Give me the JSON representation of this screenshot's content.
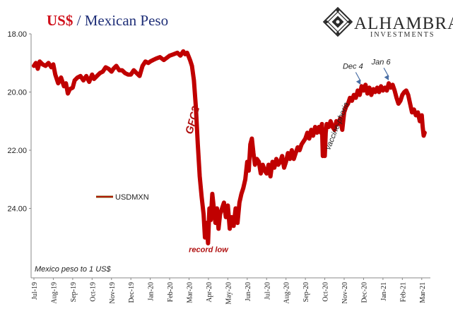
{
  "brand": {
    "name": "ALHAMBRA",
    "tagline": "INVESTMENTS"
  },
  "colors": {
    "series": "#c00000",
    "title_red": "#d0101b",
    "title_blue": "#1f2f78",
    "arrow": "#4a6fa5"
  },
  "chart_data": {
    "type": "line",
    "title_part1": "US$",
    "title_sep": " / ",
    "title_part2": "Mexican Peso",
    "subtitle": "Mexico peso to 1 US$",
    "y_inverted": true,
    "ylim": [
      18.0,
      26.0
    ],
    "yticks": [
      {
        "value": 18.0,
        "label": "18.00"
      },
      {
        "value": 20.0,
        "label": "20.00"
      },
      {
        "value": 22.0,
        "label": "22.00"
      },
      {
        "value": 24.0,
        "label": "24.00"
      }
    ],
    "xticks": [
      "Jul-19",
      "Aug-19",
      "Sep-19",
      "Oct-19",
      "Nov-19",
      "Dec-19",
      "Jan-20",
      "Feb-20",
      "Mar-20",
      "Apr-20",
      "May-20",
      "Jun-20",
      "Jul-20",
      "Aug-20",
      "Sep-20",
      "Oct-20",
      "Nov-20",
      "Dec-20",
      "Jan-21",
      "Feb-21",
      "Mar-21"
    ],
    "x_range": [
      0,
      20.3
    ],
    "legend": {
      "label": "USDMXN",
      "position": "center-left"
    },
    "series": [
      {
        "name": "USDMXN",
        "points": [
          [
            0.0,
            19.1
          ],
          [
            0.1,
            19.0
          ],
          [
            0.2,
            19.2
          ],
          [
            0.3,
            18.95
          ],
          [
            0.45,
            19.05
          ],
          [
            0.6,
            19.1
          ],
          [
            0.75,
            19.0
          ],
          [
            0.9,
            19.15
          ],
          [
            1.0,
            19.05
          ],
          [
            1.1,
            19.4
          ],
          [
            1.25,
            19.7
          ],
          [
            1.4,
            19.5
          ],
          [
            1.55,
            19.8
          ],
          [
            1.65,
            19.7
          ],
          [
            1.75,
            20.05
          ],
          [
            1.85,
            19.9
          ],
          [
            2.0,
            19.85
          ],
          [
            2.1,
            19.6
          ],
          [
            2.25,
            19.5
          ],
          [
            2.4,
            19.45
          ],
          [
            2.55,
            19.6
          ],
          [
            2.7,
            19.45
          ],
          [
            2.85,
            19.65
          ],
          [
            3.0,
            19.4
          ],
          [
            3.1,
            19.55
          ],
          [
            3.25,
            19.45
          ],
          [
            3.4,
            19.35
          ],
          [
            3.55,
            19.3
          ],
          [
            3.7,
            19.15
          ],
          [
            3.85,
            19.2
          ],
          [
            4.0,
            19.3
          ],
          [
            4.1,
            19.2
          ],
          [
            4.25,
            19.1
          ],
          [
            4.4,
            19.25
          ],
          [
            4.55,
            19.25
          ],
          [
            4.7,
            19.35
          ],
          [
            4.85,
            19.4
          ],
          [
            5.0,
            19.4
          ],
          [
            5.15,
            19.25
          ],
          [
            5.3,
            19.35
          ],
          [
            5.45,
            19.45
          ],
          [
            5.6,
            19.1
          ],
          [
            5.75,
            18.95
          ],
          [
            5.9,
            19.0
          ],
          [
            6.0,
            18.95
          ],
          [
            6.15,
            18.9
          ],
          [
            6.3,
            18.85
          ],
          [
            6.5,
            18.8
          ],
          [
            6.7,
            18.9
          ],
          [
            6.9,
            18.8
          ],
          [
            7.0,
            18.75
          ],
          [
            7.2,
            18.7
          ],
          [
            7.4,
            18.65
          ],
          [
            7.55,
            18.75
          ],
          [
            7.7,
            18.6
          ],
          [
            7.8,
            18.7
          ],
          [
            7.9,
            18.65
          ],
          [
            8.05,
            18.9
          ],
          [
            8.15,
            19.1
          ],
          [
            8.25,
            19.6
          ],
          [
            8.35,
            20.5
          ],
          [
            8.45,
            21.8
          ],
          [
            8.55,
            22.9
          ],
          [
            8.65,
            23.6
          ],
          [
            8.75,
            24.2
          ],
          [
            8.82,
            25.0
          ],
          [
            8.9,
            24.5
          ],
          [
            8.98,
            25.2
          ],
          [
            9.05,
            24.0
          ],
          [
            9.12,
            24.4
          ],
          [
            9.2,
            23.5
          ],
          [
            9.28,
            24.0
          ],
          [
            9.36,
            24.5
          ],
          [
            9.44,
            24.0
          ],
          [
            9.52,
            24.7
          ],
          [
            9.6,
            24.2
          ],
          [
            9.7,
            24.0
          ],
          [
            9.8,
            23.8
          ],
          [
            9.9,
            24.3
          ],
          [
            10.0,
            23.9
          ],
          [
            10.1,
            24.7
          ],
          [
            10.2,
            24.3
          ],
          [
            10.3,
            24.6
          ],
          [
            10.4,
            24.0
          ],
          [
            10.5,
            24.5
          ],
          [
            10.6,
            23.8
          ],
          [
            10.7,
            23.5
          ],
          [
            10.8,
            23.3
          ],
          [
            10.9,
            23.0
          ],
          [
            11.0,
            22.4
          ],
          [
            11.08,
            22.7
          ],
          [
            11.16,
            21.8
          ],
          [
            11.24,
            21.6
          ],
          [
            11.32,
            22.1
          ],
          [
            11.4,
            22.5
          ],
          [
            11.5,
            22.3
          ],
          [
            11.6,
            22.4
          ],
          [
            11.7,
            22.8
          ],
          [
            11.8,
            22.5
          ],
          [
            11.9,
            22.7
          ],
          [
            12.0,
            22.8
          ],
          [
            12.1,
            22.5
          ],
          [
            12.2,
            22.9
          ],
          [
            12.3,
            22.4
          ],
          [
            12.4,
            22.6
          ],
          [
            12.5,
            22.3
          ],
          [
            12.6,
            22.5
          ],
          [
            12.7,
            22.4
          ],
          [
            12.8,
            22.2
          ],
          [
            12.9,
            22.6
          ],
          [
            13.0,
            22.4
          ],
          [
            13.1,
            22.1
          ],
          [
            13.2,
            22.3
          ],
          [
            13.3,
            22.0
          ],
          [
            13.4,
            22.3
          ],
          [
            13.5,
            22.1
          ],
          [
            13.6,
            21.9
          ],
          [
            13.7,
            22.0
          ],
          [
            13.8,
            21.8
          ],
          [
            13.9,
            21.7
          ],
          [
            14.0,
            21.6
          ],
          [
            14.1,
            21.4
          ],
          [
            14.2,
            21.6
          ],
          [
            14.3,
            21.3
          ],
          [
            14.4,
            21.5
          ],
          [
            14.5,
            21.2
          ],
          [
            14.6,
            21.4
          ],
          [
            14.7,
            21.2
          ],
          [
            14.8,
            21.4
          ],
          [
            14.85,
            21.1
          ],
          [
            14.9,
            22.2
          ],
          [
            14.95,
            21.8
          ],
          [
            15.0,
            22.2
          ],
          [
            15.05,
            21.4
          ],
          [
            15.1,
            21.1
          ],
          [
            15.2,
            21.2
          ],
          [
            15.3,
            21.0
          ],
          [
            15.4,
            21.2
          ],
          [
            15.5,
            21.3
          ],
          [
            15.6,
            21.0
          ],
          [
            15.7,
            21.1
          ],
          [
            15.8,
            20.9
          ],
          [
            15.9,
            21.3
          ],
          [
            15.95,
            21.0
          ],
          [
            16.0,
            20.7
          ],
          [
            16.1,
            20.5
          ],
          [
            16.2,
            20.4
          ],
          [
            16.3,
            20.2
          ],
          [
            16.4,
            20.3
          ],
          [
            16.5,
            20.1
          ],
          [
            16.6,
            20.2
          ],
          [
            16.7,
            19.95
          ],
          [
            16.8,
            20.1
          ],
          [
            16.9,
            19.8
          ],
          [
            17.0,
            19.95
          ],
          [
            17.1,
            19.75
          ],
          [
            17.2,
            20.05
          ],
          [
            17.3,
            19.85
          ],
          [
            17.4,
            20.1
          ],
          [
            17.5,
            19.9
          ],
          [
            17.6,
            20.0
          ],
          [
            17.7,
            19.85
          ],
          [
            17.8,
            20.0
          ],
          [
            17.9,
            19.8
          ],
          [
            18.0,
            19.95
          ],
          [
            18.1,
            19.85
          ],
          [
            18.2,
            19.95
          ],
          [
            18.3,
            19.7
          ],
          [
            18.4,
            19.85
          ],
          [
            18.5,
            19.75
          ],
          [
            18.6,
            19.95
          ],
          [
            18.7,
            20.2
          ],
          [
            18.8,
            20.4
          ],
          [
            18.9,
            20.3
          ],
          [
            19.0,
            20.1
          ],
          [
            19.1,
            20.0
          ],
          [
            19.2,
            19.95
          ],
          [
            19.3,
            20.1
          ],
          [
            19.4,
            20.4
          ],
          [
            19.5,
            20.7
          ],
          [
            19.6,
            20.6
          ],
          [
            19.7,
            20.8
          ],
          [
            19.8,
            20.7
          ],
          [
            19.9,
            21.0
          ],
          [
            20.0,
            20.8
          ],
          [
            20.05,
            21.2
          ],
          [
            20.1,
            21.5
          ],
          [
            20.15,
            21.4
          ]
        ]
      }
    ],
    "annotations": [
      {
        "text": "GFC2",
        "x": 8.35,
        "y": 21.0,
        "style": "red-bold-rotated"
      },
      {
        "text": "record low",
        "x": 9.0,
        "y": 25.5,
        "style": "red-italic"
      },
      {
        "text": "vaccine-phoria",
        "x": 15.75,
        "y": 21.2,
        "style": "italic-rotated"
      },
      {
        "text": "Dec 4",
        "x": 16.45,
        "y": 19.2,
        "arrow_to": [
          16.85,
          19.75
        ]
      },
      {
        "text": "Jan 6",
        "x": 17.9,
        "y": 19.05,
        "arrow_to": [
          18.3,
          19.6
        ]
      }
    ]
  }
}
